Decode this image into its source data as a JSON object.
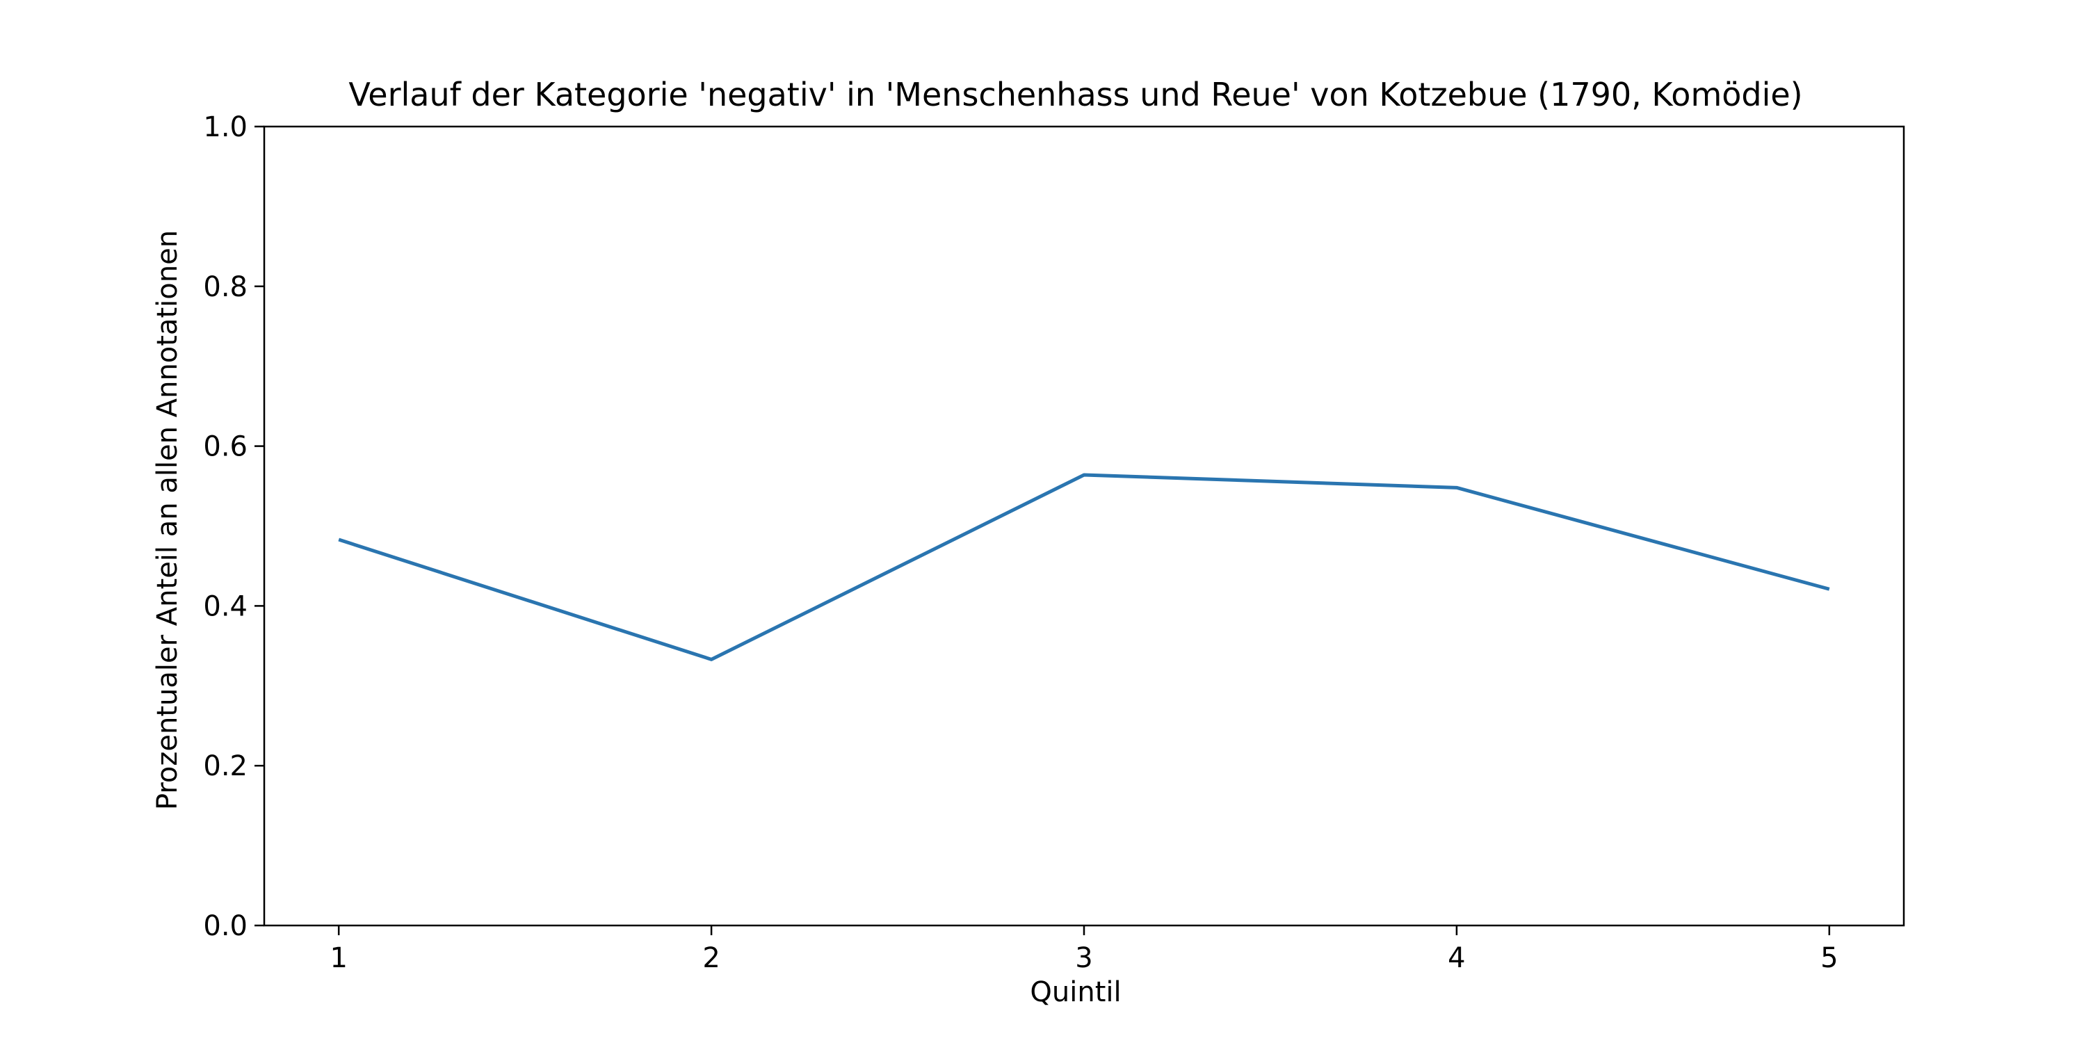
{
  "chart_data": {
    "type": "line",
    "title": "Verlauf der Kategorie 'negativ' in 'Menschenhass und Reue' von Kotzebue (1790, Komödie)",
    "xlabel": "Quintil",
    "ylabel": "Prozentualer Anteil an allen Annotationen",
    "x": [
      1,
      2,
      3,
      4,
      5
    ],
    "x_tick_labels": [
      "1",
      "2",
      "3",
      "4",
      "5"
    ],
    "y_ticks": [
      0.0,
      0.2,
      0.4,
      0.6,
      0.8,
      1.0
    ],
    "y_tick_labels": [
      "0.0",
      "0.2",
      "0.4",
      "0.6",
      "0.8",
      "1.0"
    ],
    "xlim": [
      0.8,
      5.2
    ],
    "ylim": [
      0.0,
      1.0
    ],
    "grid": false,
    "series": [
      {
        "values": [
          0.483,
          0.333,
          0.564,
          0.548,
          0.421
        ],
        "color": "#2a75b0"
      }
    ]
  }
}
